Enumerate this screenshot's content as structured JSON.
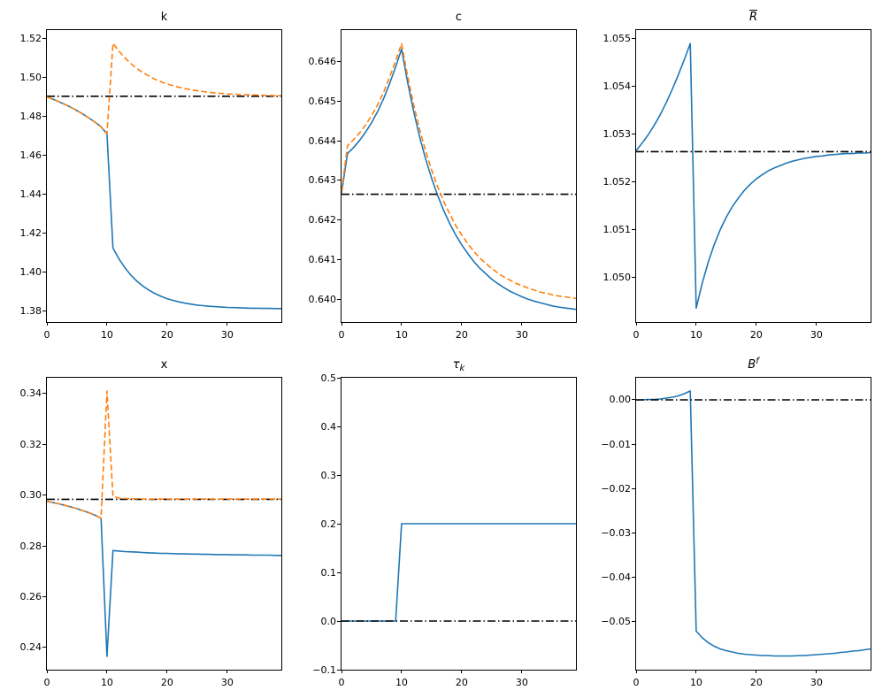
{
  "figure_background": "#ffffff",
  "line_colors": {
    "baseline": "#1f77b4",
    "alternative": "#ff7f0e",
    "steady_state": "#000000"
  },
  "chart_data": [
    {
      "id": "k",
      "type": "line",
      "title": {
        "base": "k",
        "sub": "",
        "sup": "",
        "italic": false,
        "overline": false
      },
      "xlabel": "",
      "ylabel": "",
      "xlim": [
        0,
        39
      ],
      "ylim": [
        1.3745,
        1.5245
      ],
      "xticks": [
        0,
        10,
        20,
        30
      ],
      "xtick_labels": [
        "0",
        "10",
        "20",
        "30"
      ],
      "yticks": [
        1.38,
        1.4,
        1.42,
        1.44,
        1.46,
        1.48,
        1.5,
        1.52
      ],
      "ytick_labels": [
        "1.38",
        "1.40",
        "1.42",
        "1.44",
        "1.46",
        "1.48",
        "1.50",
        "1.52"
      ],
      "series": [
        {
          "name": "response-line-solid",
          "style": "solid",
          "color": "#1f77b4",
          "y": [
            1.4902,
            1.489,
            1.4877,
            1.4863,
            1.4848,
            1.4831,
            1.4813,
            1.4793,
            1.4772,
            1.4748,
            1.4712,
            1.4125,
            1.4069,
            1.4023,
            1.3985,
            1.3954,
            1.3929,
            1.3908,
            1.3891,
            1.3877,
            1.3865,
            1.3856,
            1.3848,
            1.3842,
            1.3837,
            1.3832,
            1.3829,
            1.3826,
            1.3824,
            1.3822,
            1.382,
            1.3819,
            1.3818,
            1.3817,
            1.3816,
            1.3816,
            1.3815,
            1.3815,
            1.3814,
            1.3814
          ]
        },
        {
          "name": "steady-state-line",
          "style": "dashdot",
          "color": "#000000",
          "x": [
            0,
            39
          ],
          "y": [
            1.4905,
            1.4905
          ]
        },
        {
          "name": "response-line-dashed",
          "style": "dashed",
          "color": "#ff7f0e",
          "y": [
            1.4902,
            1.489,
            1.4877,
            1.4863,
            1.4848,
            1.4831,
            1.4813,
            1.4793,
            1.4772,
            1.4748,
            1.4712,
            1.5177,
            1.5136,
            1.5102,
            1.5072,
            1.5047,
            1.5026,
            1.5008,
            1.4992,
            1.4979,
            1.4968,
            1.4959,
            1.4951,
            1.4944,
            1.4938,
            1.4933,
            1.4929,
            1.4925,
            1.4922,
            1.492,
            1.4917,
            1.4916,
            1.4914,
            1.4913,
            1.4912,
            1.4911,
            1.491,
            1.4909,
            1.4908,
            1.4908
          ]
        }
      ]
    },
    {
      "id": "c",
      "type": "line",
      "title": {
        "base": "c",
        "sub": "",
        "sup": "",
        "italic": false,
        "overline": false
      },
      "xlabel": "",
      "ylabel": "",
      "xlim": [
        0,
        39
      ],
      "ylim": [
        0.63942,
        0.6468
      ],
      "xticks": [
        0,
        10,
        20,
        30
      ],
      "xtick_labels": [
        "0",
        "10",
        "20",
        "30"
      ],
      "yticks": [
        0.64,
        0.641,
        0.642,
        0.643,
        0.644,
        0.645,
        0.646
      ],
      "ytick_labels": [
        "0.640",
        "0.641",
        "0.642",
        "0.643",
        "0.644",
        "0.645",
        "0.646"
      ],
      "series": [
        {
          "name": "response-line-solid",
          "style": "solid",
          "color": "#1f77b4",
          "y": [
            0.64268,
            0.64368,
            0.64383,
            0.64401,
            0.64422,
            0.64446,
            0.64474,
            0.64507,
            0.64545,
            0.64587,
            0.64632,
            0.64548,
            0.64475,
            0.6441,
            0.64354,
            0.64305,
            0.64262,
            0.64224,
            0.64191,
            0.64162,
            0.64137,
            0.64115,
            0.64095,
            0.64078,
            0.64064,
            0.6405,
            0.64039,
            0.64029,
            0.6402,
            0.64013,
            0.64006,
            0.64,
            0.63995,
            0.63991,
            0.63987,
            0.63983,
            0.6398,
            0.63978,
            0.63976,
            0.63974
          ]
        },
        {
          "name": "steady-state-line",
          "style": "dashdot",
          "color": "#000000",
          "x": [
            0,
            39
          ],
          "y": [
            0.64265,
            0.64265
          ]
        },
        {
          "name": "response-line-dashed",
          "style": "dashed",
          "color": "#ff7f0e",
          "y": [
            0.64272,
            0.64388,
            0.64403,
            0.6442,
            0.6444,
            0.64464,
            0.64491,
            0.64523,
            0.64561,
            0.64602,
            0.64646,
            0.64564,
            0.64492,
            0.64429,
            0.64374,
            0.64326,
            0.64284,
            0.64247,
            0.64215,
            0.64186,
            0.64162,
            0.6414,
            0.64121,
            0.64104,
            0.6409,
            0.64077,
            0.64066,
            0.64056,
            0.64048,
            0.6404,
            0.64034,
            0.64028,
            0.64023,
            0.64018,
            0.64015,
            0.64011,
            0.64008,
            0.64006,
            0.64004,
            0.64002
          ]
        }
      ]
    },
    {
      "id": "R-bar",
      "type": "line",
      "title": {
        "base": "R",
        "sub": "",
        "sup": "",
        "italic": true,
        "overline": true
      },
      "xlabel": "",
      "ylabel": "",
      "xlim": [
        0,
        39
      ],
      "ylim": [
        1.04907,
        1.05517
      ],
      "xticks": [
        0,
        10,
        20,
        30
      ],
      "xtick_labels": [
        "0",
        "10",
        "20",
        "30"
      ],
      "yticks": [
        1.05,
        1.051,
        1.052,
        1.053,
        1.054,
        1.055
      ],
      "ytick_labels": [
        "1.050",
        "1.051",
        "1.052",
        "1.053",
        "1.054",
        "1.055"
      ],
      "series": [
        {
          "name": "response-line-solid",
          "style": "solid",
          "color": "#1f77b4",
          "y": [
            1.05265,
            1.05281,
            1.05298,
            1.05318,
            1.0534,
            1.05365,
            1.05393,
            1.05423,
            1.05455,
            1.05489,
            1.04936,
            1.04988,
            1.05032,
            1.05069,
            1.051,
            1.05126,
            1.05148,
            1.05166,
            1.05182,
            1.05195,
            1.05206,
            1.05215,
            1.05223,
            1.05229,
            1.05234,
            1.05239,
            1.05243,
            1.05246,
            1.05249,
            1.05251,
            1.05253,
            1.05254,
            1.05256,
            1.05257,
            1.05258,
            1.05259,
            1.05259,
            1.0526,
            1.0526,
            1.05261
          ]
        },
        {
          "name": "steady-state-line",
          "style": "dashdot",
          "color": "#000000",
          "x": [
            0,
            39
          ],
          "y": [
            1.05263,
            1.05263
          ]
        }
      ]
    },
    {
      "id": "x",
      "type": "line",
      "title": {
        "base": "x",
        "sub": "",
        "sup": "",
        "italic": false,
        "overline": false
      },
      "xlabel": "",
      "ylabel": "",
      "xlim": [
        0,
        39
      ],
      "ylim": [
        0.23127,
        0.34627
      ],
      "xticks": [
        0,
        10,
        20,
        30
      ],
      "xtick_labels": [
        "0",
        "10",
        "20",
        "30"
      ],
      "yticks": [
        0.24,
        0.26,
        0.28,
        0.3,
        0.32,
        0.34
      ],
      "ytick_labels": [
        "0.24",
        "0.26",
        "0.28",
        "0.30",
        "0.32",
        "0.34"
      ],
      "series": [
        {
          "name": "response-line-solid",
          "style": "solid",
          "color": "#1f77b4",
          "y": [
            0.2976,
            0.2971,
            0.2966,
            0.296,
            0.2954,
            0.2947,
            0.2939,
            0.2931,
            0.2921,
            0.291,
            0.2365,
            0.2782,
            0.278,
            0.2778,
            0.2777,
            0.2776,
            0.2774,
            0.2773,
            0.2772,
            0.2771,
            0.2771,
            0.277,
            0.2769,
            0.2769,
            0.2768,
            0.2768,
            0.2767,
            0.2767,
            0.2766,
            0.2766,
            0.2766,
            0.2765,
            0.2765,
            0.2765,
            0.2764,
            0.2764,
            0.2764,
            0.2764,
            0.2763,
            0.2763
          ]
        },
        {
          "name": "steady-state-line",
          "style": "dashdot",
          "color": "#000000",
          "x": [
            0,
            39
          ],
          "y": [
            0.2984,
            0.2984
          ]
        },
        {
          "name": "response-line-dashed",
          "style": "dashed",
          "color": "#ff7f0e",
          "y": [
            0.2976,
            0.2971,
            0.2966,
            0.296,
            0.2954,
            0.2947,
            0.2939,
            0.2931,
            0.2921,
            0.291,
            0.341,
            0.2995,
            0.2989,
            0.2987,
            0.2986,
            0.2986,
            0.2985,
            0.2985,
            0.2985,
            0.2985,
            0.2985,
            0.2985,
            0.2985,
            0.2985,
            0.2985,
            0.2985,
            0.2985,
            0.2985,
            0.2985,
            0.2985,
            0.2985,
            0.2985,
            0.2985,
            0.2985,
            0.2985,
            0.2985,
            0.2985,
            0.2985,
            0.2985,
            0.2985
          ]
        }
      ]
    },
    {
      "id": "tau-k",
      "type": "line",
      "title": {
        "base": "τ",
        "sub": "k",
        "sup": "",
        "italic": true,
        "overline": false
      },
      "xlabel": "",
      "ylabel": "",
      "xlim": [
        0,
        39
      ],
      "ylim": [
        -0.1,
        0.5
      ],
      "xticks": [
        0,
        10,
        20,
        30
      ],
      "xtick_labels": [
        "0",
        "10",
        "20",
        "30"
      ],
      "yticks": [
        -0.1,
        0.0,
        0.1,
        0.2,
        0.3,
        0.4,
        0.5
      ],
      "ytick_labels": [
        "−0.1",
        "0.0",
        "0.1",
        "0.2",
        "0.3",
        "0.4",
        "0.5"
      ],
      "series": [
        {
          "name": "response-line-solid",
          "style": "solid",
          "color": "#1f77b4",
          "y": [
            0.0,
            0.0,
            0.0,
            0.0,
            0.0,
            0.0,
            0.0,
            0.0,
            0.0,
            0.0,
            0.2,
            0.2,
            0.2,
            0.2,
            0.2,
            0.2,
            0.2,
            0.2,
            0.2,
            0.2,
            0.2,
            0.2,
            0.2,
            0.2,
            0.2,
            0.2,
            0.2,
            0.2,
            0.2,
            0.2,
            0.2,
            0.2,
            0.2,
            0.2,
            0.2,
            0.2,
            0.2,
            0.2,
            0.2,
            0.2
          ]
        },
        {
          "name": "steady-state-line",
          "style": "dashdot",
          "color": "#000000",
          "x": [
            0,
            39
          ],
          "y": [
            0.0,
            0.0
          ]
        }
      ]
    },
    {
      "id": "B-f",
      "type": "line",
      "title": {
        "base": "B",
        "sub": "",
        "sup": "f",
        "italic": true,
        "overline": false
      },
      "xlabel": "",
      "ylabel": "",
      "xlim": [
        0,
        39
      ],
      "ylim": [
        -0.0609,
        0.00499
      ],
      "xticks": [
        0,
        10,
        20,
        30
      ],
      "xtick_labels": [
        "0",
        "10",
        "20",
        "30"
      ],
      "yticks": [
        -0.05,
        -0.04,
        -0.03,
        -0.02,
        -0.01,
        0.0
      ],
      "ytick_labels": [
        "−0.05",
        "−0.04",
        "−0.03",
        "−0.02",
        "−0.01",
        "0.00"
      ],
      "series": [
        {
          "name": "response-line-solid",
          "style": "solid",
          "color": "#1f77b4",
          "y": [
            0.0,
            0.0,
            0.0001,
            0.0001,
            0.0002,
            0.0004,
            0.0006,
            0.0009,
            0.0014,
            0.002,
            -0.0522,
            -0.0537,
            -0.0548,
            -0.0556,
            -0.0562,
            -0.0566,
            -0.0569,
            -0.0572,
            -0.0574,
            -0.0575,
            -0.0576,
            -0.0577,
            -0.0577,
            -0.0578,
            -0.0578,
            -0.0578,
            -0.0578,
            -0.0577,
            -0.0577,
            -0.0576,
            -0.0575,
            -0.0574,
            -0.0573,
            -0.0572,
            -0.057,
            -0.0569,
            -0.0567,
            -0.0566,
            -0.0564,
            -0.0562
          ]
        },
        {
          "name": "steady-state-line",
          "style": "dashdot",
          "color": "#000000",
          "x": [
            0,
            39
          ],
          "y": [
            0.0,
            0.0
          ]
        }
      ]
    }
  ]
}
